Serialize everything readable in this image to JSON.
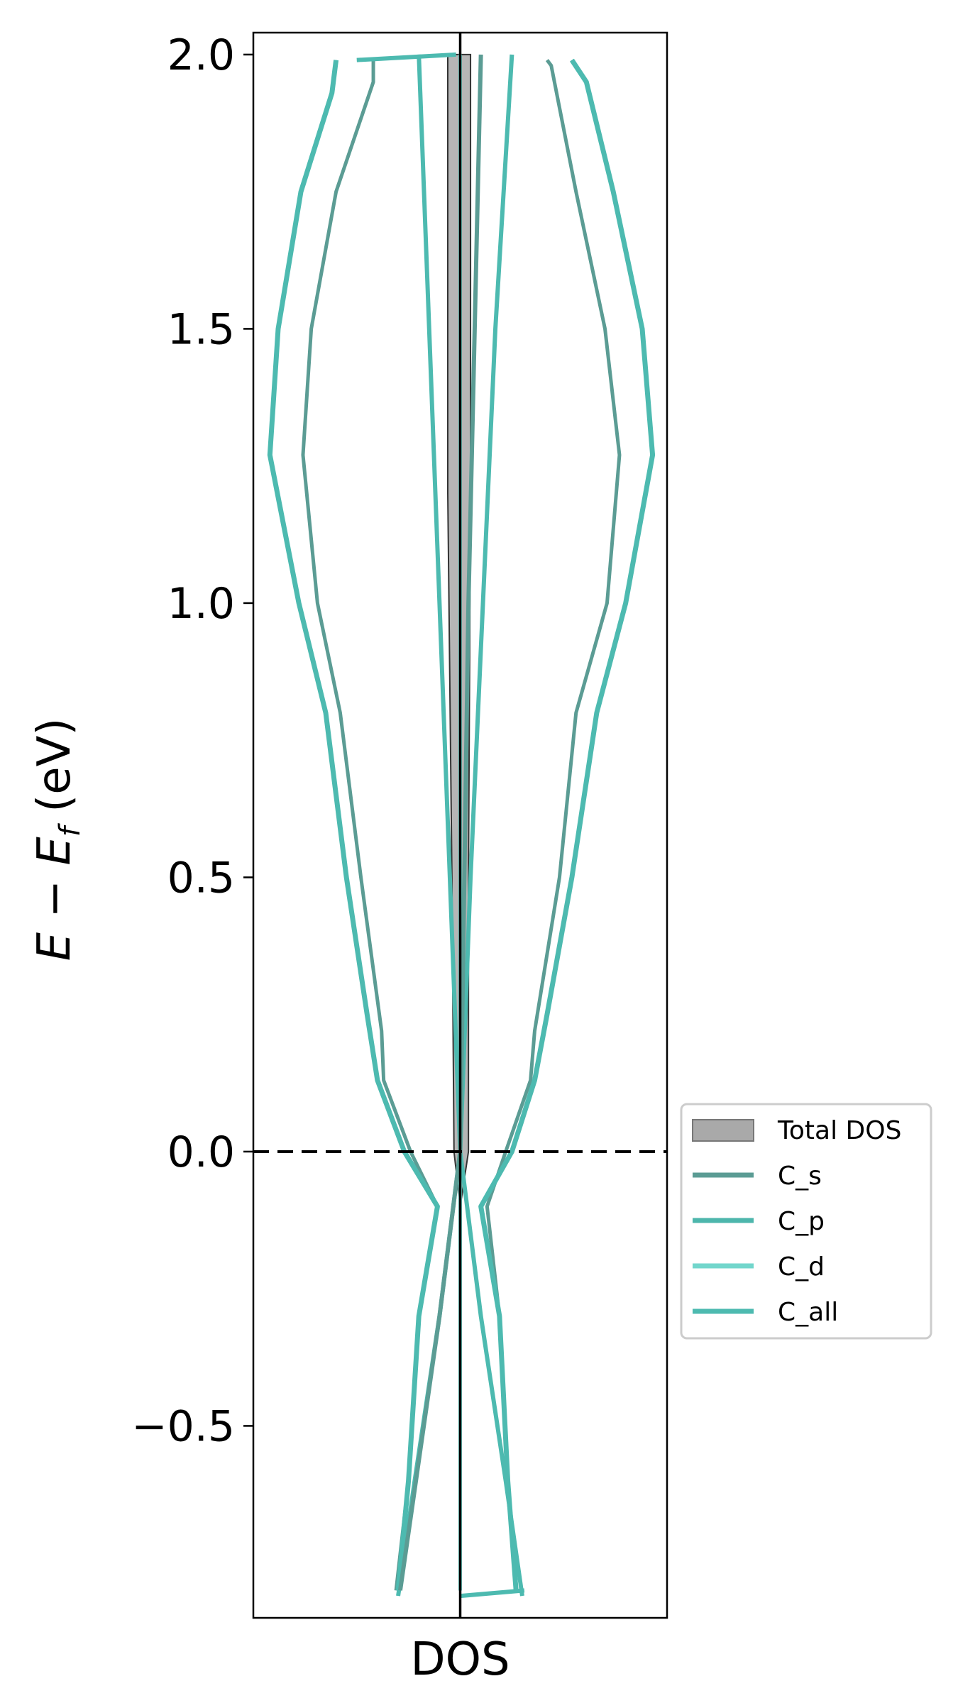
{
  "chart_data": {
    "type": "line",
    "orientation": "vertical-energy",
    "xlabel": "DOS",
    "ylabel_parts": {
      "e": "E",
      "minus": " − ",
      "ef": "E",
      "f": "f",
      "unit": " (eV)"
    },
    "ylim": [
      -0.85,
      2.04
    ],
    "xlim": [
      -1.0,
      1.0
    ],
    "y_ticks": [
      -0.5,
      0.0,
      0.5,
      1.0,
      1.5,
      2.0
    ],
    "y_tick_labels": [
      "−0.5",
      "0.0",
      "0.5",
      "1.0",
      "1.5",
      "2.0"
    ],
    "fermi_level": 0.0,
    "legend_position": "center-right outside",
    "series": [
      {
        "name": "Total DOS",
        "style": "fill",
        "color": "#a9a9a9",
        "points_pos": [
          [
            -0.82,
            0.0
          ],
          [
            -0.1,
            0.0
          ],
          [
            0.0,
            0.04
          ],
          [
            0.5,
            0.04
          ],
          [
            1.2,
            0.05
          ],
          [
            2.0,
            0.05
          ]
        ],
        "points_neg": [
          [
            -0.82,
            0.0
          ],
          [
            -0.1,
            0.0
          ],
          [
            0.0,
            -0.03
          ],
          [
            0.5,
            -0.04
          ],
          [
            1.2,
            -0.06
          ],
          [
            2.0,
            -0.06
          ]
        ]
      },
      {
        "name": "C_s",
        "style": "line",
        "color": "#5b9c94",
        "points_pos": [
          [
            -0.8,
            0.27
          ],
          [
            -0.6,
            0.23
          ],
          [
            -0.3,
            0.19
          ],
          [
            -0.1,
            0.13
          ],
          [
            0.0,
            0.22
          ],
          [
            0.13,
            0.34
          ],
          [
            0.22,
            0.36
          ],
          [
            0.5,
            0.48
          ],
          [
            0.8,
            0.56
          ],
          [
            1.0,
            0.71
          ],
          [
            1.27,
            0.77
          ],
          [
            1.5,
            0.7
          ],
          [
            1.75,
            0.56
          ],
          [
            1.98,
            0.44
          ],
          [
            1.99,
            0.42
          ]
        ],
        "points_neg": [
          [
            -0.8,
            -0.31
          ],
          [
            -0.6,
            -0.25
          ],
          [
            -0.3,
            -0.2
          ],
          [
            -0.1,
            -0.11
          ],
          [
            0.0,
            -0.24
          ],
          [
            0.13,
            -0.37
          ],
          [
            0.22,
            -0.38
          ],
          [
            0.5,
            -0.48
          ],
          [
            0.8,
            -0.58
          ],
          [
            1.0,
            -0.69
          ],
          [
            1.27,
            -0.76
          ],
          [
            1.5,
            -0.72
          ],
          [
            1.75,
            -0.6
          ],
          [
            1.95,
            -0.42
          ],
          [
            1.99,
            -0.42
          ]
        ]
      },
      {
        "name": "C_p",
        "style": "line",
        "color": "#4db6ac",
        "points_pos": [
          [
            -0.8,
            0.27
          ],
          [
            -0.6,
            0.23
          ],
          [
            -0.3,
            0.19
          ],
          [
            -0.1,
            0.1
          ],
          [
            0.0,
            0.25
          ],
          [
            0.13,
            0.36
          ],
          [
            0.25,
            0.42
          ],
          [
            0.5,
            0.54
          ],
          [
            0.8,
            0.66
          ],
          [
            1.0,
            0.8
          ],
          [
            1.27,
            0.93
          ],
          [
            1.5,
            0.88
          ],
          [
            1.75,
            0.74
          ],
          [
            1.95,
            0.61
          ],
          [
            1.99,
            0.54
          ]
        ],
        "points_neg": [
          [
            -0.8,
            -0.3
          ],
          [
            -0.6,
            -0.25
          ],
          [
            -0.3,
            -0.2
          ],
          [
            -0.1,
            -0.11
          ],
          [
            0.0,
            -0.27
          ],
          [
            0.13,
            -0.4
          ],
          [
            0.25,
            -0.45
          ],
          [
            0.5,
            -0.55
          ],
          [
            0.8,
            -0.65
          ],
          [
            1.0,
            -0.78
          ],
          [
            1.27,
            -0.92
          ],
          [
            1.5,
            -0.88
          ],
          [
            1.75,
            -0.77
          ],
          [
            1.93,
            -0.62
          ],
          [
            1.99,
            -0.6
          ]
        ]
      },
      {
        "name": "C_d",
        "style": "line",
        "color": "#72d6cc",
        "points_pos": [
          [
            -0.8,
            0.0
          ],
          [
            0.0,
            0.0
          ],
          [
            2.0,
            0.0
          ]
        ],
        "points_neg": [
          [
            -0.8,
            0.0
          ],
          [
            0.0,
            0.0
          ],
          [
            2.0,
            0.0
          ]
        ]
      },
      {
        "name": "C_all",
        "style": "line",
        "color": "#4dbab0",
        "points_pos": [
          [
            -0.8,
            0.27
          ],
          [
            -0.6,
            0.23
          ],
          [
            -0.3,
            0.19
          ],
          [
            -0.1,
            0.1
          ],
          [
            0.0,
            0.25
          ],
          [
            0.13,
            0.36
          ],
          [
            0.25,
            0.42
          ],
          [
            0.5,
            0.54
          ],
          [
            0.8,
            0.66
          ],
          [
            1.0,
            0.8
          ],
          [
            1.27,
            0.93
          ],
          [
            1.5,
            0.88
          ],
          [
            1.75,
            0.74
          ],
          [
            1.95,
            0.61
          ],
          [
            1.99,
            0.54
          ]
        ],
        "points_neg": [
          [
            -0.8,
            -0.3
          ],
          [
            -0.6,
            -0.25
          ],
          [
            -0.3,
            -0.2
          ],
          [
            -0.1,
            -0.11
          ],
          [
            0.0,
            -0.27
          ],
          [
            0.13,
            -0.4
          ],
          [
            0.25,
            -0.45
          ],
          [
            0.5,
            -0.55
          ],
          [
            0.8,
            -0.65
          ],
          [
            1.0,
            -0.78
          ],
          [
            1.27,
            -0.92
          ],
          [
            1.5,
            -0.88
          ],
          [
            1.75,
            -0.77
          ],
          [
            1.93,
            -0.62
          ],
          [
            1.99,
            -0.6
          ]
        ]
      }
    ],
    "cross_lines": [
      {
        "name": "C_all",
        "color": "#4dbab0",
        "points": [
          [
            -0.81,
            -0.3
          ],
          [
            -0.6,
            -0.22
          ],
          [
            -0.3,
            -0.1
          ],
          [
            0.0,
            0.0
          ],
          [
            0.2,
            0.02
          ],
          [
            0.5,
            0.05
          ],
          [
            1.0,
            0.11
          ],
          [
            1.5,
            0.17
          ],
          [
            2.0,
            0.25
          ]
        ]
      },
      {
        "name": "C_all",
        "color": "#4dbab0",
        "points": [
          [
            -0.81,
            0.3
          ],
          [
            -0.6,
            0.22
          ],
          [
            -0.3,
            0.1
          ],
          [
            0.0,
            0.0
          ],
          [
            0.2,
            -0.02
          ],
          [
            0.5,
            -0.05
          ],
          [
            1.0,
            -0.1
          ],
          [
            1.5,
            -0.15
          ],
          [
            2.0,
            -0.2
          ]
        ]
      },
      {
        "name": "C_s",
        "color": "#5b9c94",
        "points": [
          [
            -0.8,
            -0.29
          ],
          [
            -0.3,
            -0.1
          ],
          [
            0.0,
            0.0
          ],
          [
            0.5,
            0.02
          ],
          [
            1.0,
            0.04
          ],
          [
            2.0,
            0.1
          ]
        ]
      }
    ],
    "closing_segments": [
      {
        "color": "#4dbab0",
        "points": [
          [
            -0.81,
            0.0
          ],
          [
            -0.8,
            0.31
          ]
        ]
      },
      {
        "color": "#4dbab0",
        "points": [
          [
            1.99,
            -0.5
          ],
          [
            2.0,
            -0.02
          ]
        ]
      }
    ]
  },
  "legend": {
    "items": [
      {
        "label": "Total DOS",
        "kind": "patch",
        "color": "#a9a9a9"
      },
      {
        "label": "C_s",
        "kind": "line",
        "color": "#5b9c94"
      },
      {
        "label": "C_p",
        "kind": "line",
        "color": "#4db6ac"
      },
      {
        "label": "C_d",
        "kind": "line",
        "color": "#72d6cc"
      },
      {
        "label": "C_all",
        "kind": "line",
        "color": "#4dbab0"
      }
    ]
  }
}
